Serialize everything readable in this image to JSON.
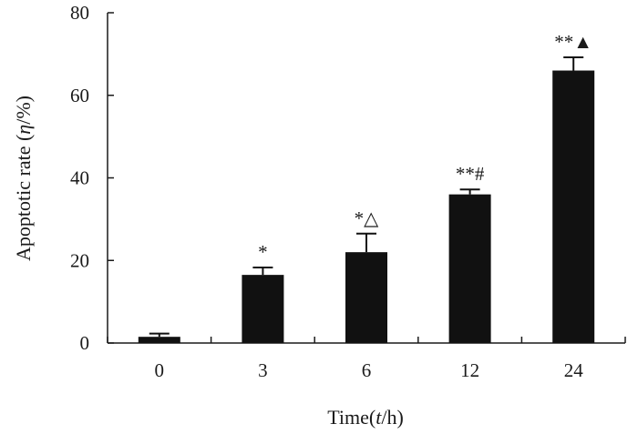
{
  "chart_data": {
    "type": "bar",
    "title": "",
    "xlabel": "Time(t/h)",
    "xlabel_prefix": "Time(",
    "xlabel_var": "t",
    "xlabel_suffix": "/h)",
    "ylabel": "Apoptotic rate (η/%)",
    "ylabel_prefix": "Apoptotic rate (",
    "ylabel_var": "η",
    "ylabel_suffix": "/%)",
    "categories": [
      "0",
      "3",
      "6",
      "12",
      "24"
    ],
    "values": [
      1.5,
      16.5,
      22,
      36,
      66
    ],
    "errors": [
      0.8,
      1.8,
      4.5,
      1.2,
      3.2
    ],
    "annotations": [
      "",
      "*",
      "*△",
      "**#",
      "**▲"
    ],
    "ylim": [
      0,
      80
    ],
    "yticks": [
      0,
      20,
      40,
      60,
      80
    ],
    "grid": false,
    "legend": "none",
    "bar_color": "#111111"
  }
}
